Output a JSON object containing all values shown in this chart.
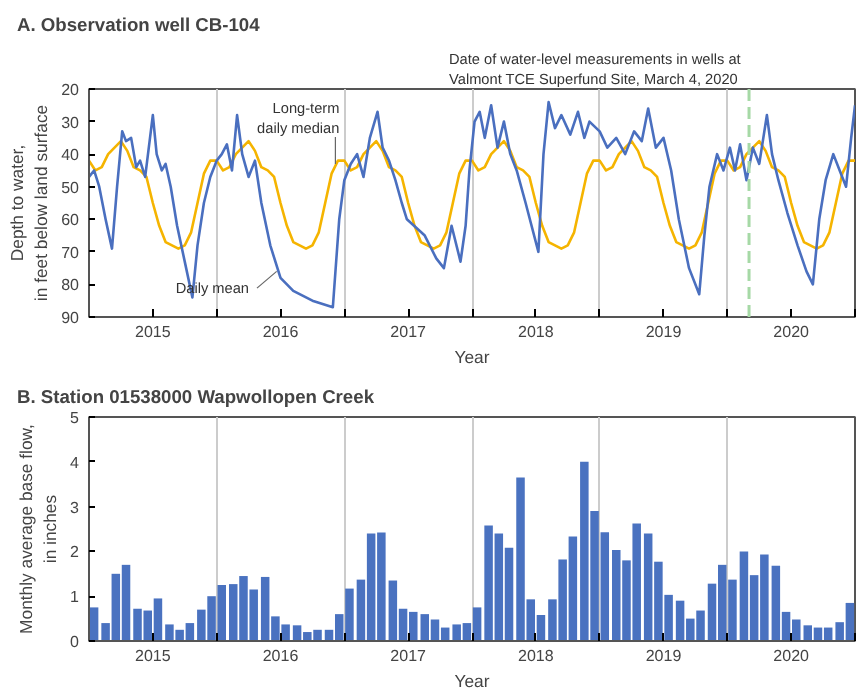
{
  "chart_data": [
    {
      "type": "line",
      "title": "A. Observation well CB-104",
      "xlabel": "Year",
      "ylabel": "Depth to water,\nin feet below land surface",
      "xlim": [
        2015,
        2021
      ],
      "ylim": [
        90,
        20
      ],
      "yticks": [
        20,
        30,
        40,
        50,
        60,
        70,
        80,
        90
      ],
      "xticks": [
        {
          "value": 2015,
          "label": null
        },
        {
          "value": 2015.5,
          "label": "2015"
        },
        {
          "value": 2016,
          "label": null
        },
        {
          "value": 2016.5,
          "label": "2016"
        },
        {
          "value": 2017,
          "label": null
        },
        {
          "value": 2017.5,
          "label": "2017"
        },
        {
          "value": 2018,
          "label": null
        },
        {
          "value": 2018.5,
          "label": "2018"
        },
        {
          "value": 2019,
          "label": null
        },
        {
          "value": 2019.5,
          "label": "2019"
        },
        {
          "value": 2020,
          "label": null
        },
        {
          "value": 2020.5,
          "label": "2020"
        },
        {
          "value": 2021,
          "label": null
        }
      ],
      "grid": "x",
      "marker": "none",
      "line_style": "solid",
      "series": [
        {
          "color": "#f5b400",
          "x": [
            2015.0,
            2015.05,
            2015.1,
            2015.15,
            2015.2,
            2015.25,
            2015.3,
            2015.35,
            2015.4,
            2015.45,
            2015.5,
            2015.55,
            2015.6,
            2015.65,
            2015.7,
            2015.75,
            2015.8,
            2015.85,
            2015.9,
            2015.95,
            2016.0,
            2016.05,
            2016.1,
            2016.15,
            2016.2,
            2016.25,
            2016.3,
            2016.35,
            2016.4,
            2016.45,
            2016.5,
            2016.55,
            2016.6,
            2016.65,
            2016.7,
            2016.75,
            2016.8,
            2016.85,
            2016.9,
            2016.95,
            2017.0,
            2017.05,
            2017.1,
            2017.15,
            2017.2,
            2017.25,
            2017.3,
            2017.35,
            2017.4,
            2017.45,
            2017.5,
            2017.55,
            2017.6,
            2017.65,
            2017.7,
            2017.75,
            2017.8,
            2017.85,
            2017.9,
            2017.95,
            2018.0,
            2018.05,
            2018.1,
            2018.15,
            2018.2,
            2018.25,
            2018.3,
            2018.35,
            2018.4,
            2018.45,
            2018.5,
            2018.55,
            2018.6,
            2018.65,
            2018.7,
            2018.75,
            2018.8,
            2018.85,
            2018.9,
            2018.95,
            2019.0,
            2019.05,
            2019.1,
            2019.15,
            2019.2,
            2019.25,
            2019.3,
            2019.35,
            2019.4,
            2019.45,
            2019.5,
            2019.55,
            2019.6,
            2019.65,
            2019.7,
            2019.75,
            2019.8,
            2019.85,
            2019.9,
            2019.95,
            2020.0,
            2020.05,
            2020.1,
            2020.15,
            2020.2,
            2020.25,
            2020.3,
            2020.35,
            2020.4,
            2020.45,
            2020.5,
            2020.55,
            2020.6,
            2020.65,
            2020.7,
            2020.75,
            2020.8,
            2020.85,
            2020.9,
            2020.95,
            2021.0
          ],
          "values": [
            42,
            45,
            44,
            40,
            38,
            36,
            39,
            44,
            45,
            47,
            55,
            62,
            67,
            68,
            69,
            68,
            64,
            55,
            46,
            42,
            42,
            45,
            44,
            40,
            38,
            36,
            39,
            44,
            45,
            47,
            55,
            62,
            67,
            68,
            69,
            68,
            64,
            55,
            46,
            42,
            42,
            45,
            44,
            40,
            38,
            36,
            39,
            44,
            45,
            47,
            55,
            62,
            67,
            68,
            69,
            68,
            64,
            55,
            46,
            42,
            42,
            45,
            44,
            40,
            38,
            36,
            39,
            44,
            45,
            47,
            55,
            62,
            67,
            68,
            69,
            68,
            64,
            55,
            46,
            42,
            42,
            45,
            44,
            40,
            38,
            36,
            39,
            44,
            45,
            47,
            55,
            62,
            67,
            68,
            69,
            68,
            64,
            55,
            46,
            42,
            42,
            45,
            44,
            40,
            38,
            36,
            39,
            44,
            45,
            47,
            55,
            62,
            67,
            68,
            69,
            68,
            64,
            55,
            46,
            42,
            42
          ]
        },
        {
          "color": "#4a6fbf",
          "x": [
            2015.0,
            2015.04,
            2015.08,
            2015.13,
            2015.18,
            2015.22,
            2015.26,
            2015.29,
            2015.33,
            2015.37,
            2015.4,
            2015.44,
            2015.5,
            2015.53,
            2015.57,
            2015.6,
            2015.64,
            2015.69,
            2015.75,
            2015.81,
            2015.85,
            2015.9,
            2015.95,
            2016.0,
            2016.04,
            2016.08,
            2016.12,
            2016.16,
            2016.2,
            2016.25,
            2016.3,
            2016.35,
            2016.42,
            2016.5,
            2016.6,
            2016.75,
            2016.91,
            2016.96,
            2017.0,
            2017.05,
            2017.1,
            2017.15,
            2017.2,
            2017.26,
            2017.3,
            2017.35,
            2017.4,
            2017.45,
            2017.49,
            2017.63,
            2017.72,
            2017.78,
            2017.84,
            2017.91,
            2017.95,
            2017.98,
            2018.02,
            2018.06,
            2018.1,
            2018.15,
            2018.2,
            2018.25,
            2018.3,
            2018.35,
            2018.42,
            2018.52,
            2018.56,
            2018.6,
            2018.65,
            2018.7,
            2018.77,
            2018.83,
            2018.88,
            2018.92,
            2019.0,
            2019.06,
            2019.13,
            2019.2,
            2019.27,
            2019.33,
            2019.38,
            2019.44,
            2019.5,
            2019.56,
            2019.62,
            2019.7,
            2019.78,
            2019.82,
            2019.86,
            2019.92,
            2019.97,
            2020.02,
            2020.06,
            2020.1,
            2020.15,
            2020.2,
            2020.25,
            2020.31,
            2020.35,
            2020.4,
            2020.47,
            2020.55,
            2020.62,
            2020.67,
            2020.72,
            2020.77,
            2020.83,
            2020.88,
            2020.93,
            2020.97,
            2021.0
          ],
          "values": [
            47,
            45,
            50,
            60,
            69,
            50,
            33,
            36,
            35,
            44,
            42,
            47,
            28,
            40,
            45,
            43,
            50,
            62,
            73,
            84,
            68,
            55,
            47,
            42,
            40,
            37,
            45,
            28,
            40,
            47,
            42,
            55,
            68,
            78,
            82,
            85,
            87,
            60,
            48,
            43,
            40,
            47,
            35,
            27,
            38,
            42,
            48,
            55,
            60,
            65,
            72,
            75,
            62,
            73,
            62,
            45,
            30,
            27,
            35,
            25,
            38,
            30,
            40,
            45,
            55,
            70,
            40,
            24,
            32,
            28,
            34,
            27,
            35,
            30,
            33,
            38,
            35,
            40,
            33,
            36,
            26,
            38,
            35,
            45,
            60,
            75,
            83,
            65,
            50,
            40,
            45,
            38,
            45,
            37,
            48,
            38,
            43,
            28,
            40,
            48,
            58,
            68,
            76,
            80,
            60,
            48,
            40,
            45,
            50,
            35,
            25
          ]
        }
      ],
      "annotations": [
        {
          "text": "Long-term\ndaily median",
          "x": 2016.93,
          "y": 43
        },
        {
          "text": "Daily mean",
          "x": 2016.47,
          "y": 76
        }
      ],
      "ref_lines": [
        {
          "axis": "x",
          "value": 2020.17,
          "label": "Date of water-level measurements in wells at\nValmont TCE Superfund Site, March 4, 2020",
          "color": "#a6d9a6",
          "line_style": "dashed"
        }
      ]
    },
    {
      "type": "bar",
      "title": "B. Station 01538000 Wapwollopen Creek",
      "xlabel": "Year",
      "ylabel": "Monthly average base flow,\nin inches",
      "xlim": [
        2015,
        2021
      ],
      "ylim": [
        0,
        5
      ],
      "yticks": [
        0,
        1,
        2,
        3,
        4,
        5
      ],
      "xticks": [
        {
          "value": 2015,
          "label": null
        },
        {
          "value": 2015.5,
          "label": "2015"
        },
        {
          "value": 2016,
          "label": null
        },
        {
          "value": 2016.5,
          "label": "2016"
        },
        {
          "value": 2017,
          "label": null
        },
        {
          "value": 2017.5,
          "label": "2017"
        },
        {
          "value": 2018,
          "label": null
        },
        {
          "value": 2018.5,
          "label": "2018"
        },
        {
          "value": 2019,
          "label": null
        },
        {
          "value": 2019.5,
          "label": "2019"
        },
        {
          "value": 2020,
          "label": null
        },
        {
          "value": 2020.5,
          "label": "2020"
        },
        {
          "value": 2021,
          "label": null
        }
      ],
      "grid": "x",
      "color": "#4a72c0",
      "x": [
        2015.04,
        2015.13,
        2015.21,
        2015.29,
        2015.38,
        2015.46,
        2015.54,
        2015.63,
        2015.71,
        2015.79,
        2015.88,
        2015.96,
        2016.04,
        2016.13,
        2016.21,
        2016.29,
        2016.38,
        2016.46,
        2016.54,
        2016.63,
        2016.71,
        2016.79,
        2016.88,
        2016.96,
        2017.04,
        2017.13,
        2017.21,
        2017.29,
        2017.38,
        2017.46,
        2017.54,
        2017.63,
        2017.71,
        2017.79,
        2017.88,
        2017.96,
        2018.04,
        2018.13,
        2018.21,
        2018.29,
        2018.38,
        2018.46,
        2018.54,
        2018.63,
        2018.71,
        2018.79,
        2018.88,
        2018.96,
        2019.04,
        2019.13,
        2019.21,
        2019.29,
        2019.38,
        2019.46,
        2019.54,
        2019.63,
        2019.71,
        2019.79,
        2019.88,
        2019.96,
        2020.04,
        2020.13,
        2020.21,
        2020.29,
        2020.38,
        2020.46,
        2020.54,
        2020.63,
        2020.71,
        2020.79,
        2020.88,
        2020.96
      ],
      "values": [
        0.75,
        0.4,
        1.5,
        1.7,
        0.72,
        0.68,
        0.95,
        0.37,
        0.25,
        0.4,
        0.7,
        1.0,
        1.25,
        1.27,
        1.45,
        1.15,
        1.43,
        0.55,
        0.37,
        0.35,
        0.2,
        0.25,
        0.25,
        0.6,
        1.17,
        1.37,
        2.4,
        2.42,
        1.35,
        0.72,
        0.65,
        0.6,
        0.48,
        0.3,
        0.37,
        0.4,
        0.75,
        2.58,
        2.4,
        2.08,
        3.65,
        0.93,
        0.58,
        0.93,
        1.82,
        2.33,
        4.0,
        2.9,
        2.43,
        2.03,
        1.8,
        2.62,
        2.4,
        1.77,
        1.03,
        0.9,
        0.5,
        0.68,
        1.28,
        1.7,
        1.37,
        2.0,
        1.47,
        1.93,
        1.68,
        0.65,
        0.48,
        0.35,
        0.3,
        0.3,
        0.42,
        0.85
      ]
    }
  ]
}
